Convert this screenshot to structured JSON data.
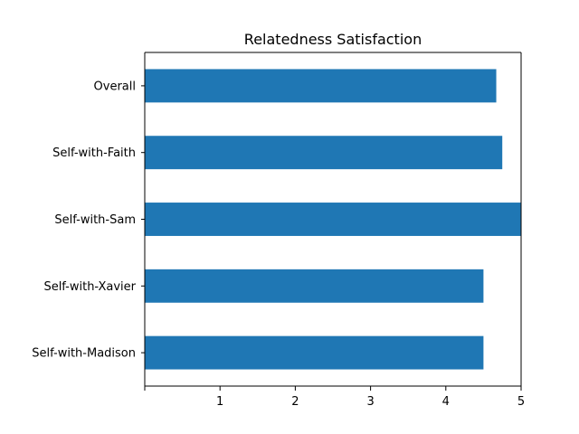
{
  "chart_data": {
    "type": "bar",
    "orientation": "horizontal",
    "title": "Relatedness Satisfaction",
    "xlabel": "",
    "ylabel": "",
    "categories": [
      "Overall",
      "Self-with-Faith",
      "Self-with-Sam",
      "Self-with-Xavier",
      "Self-with-Madison"
    ],
    "values": [
      4.67,
      4.75,
      5.0,
      4.5,
      4.5
    ],
    "xlim": [
      0,
      5
    ],
    "xticks": [
      "1",
      "2",
      "3",
      "4",
      "5"
    ],
    "grid": false,
    "bar_color": "#1f77b4"
  }
}
